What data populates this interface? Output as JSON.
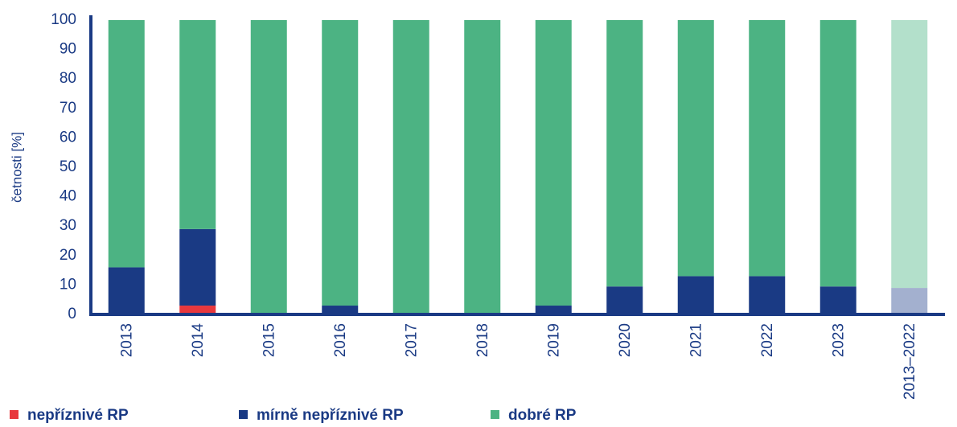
{
  "chart_data": {
    "type": "stacked_bar",
    "y_label": "četnosti [%]",
    "categories": [
      "2013",
      "2014",
      "2015",
      "2016",
      "2017",
      "2018",
      "2019",
      "2020",
      "2021",
      "2022",
      "2023",
      "2013–2022"
    ],
    "series": [
      {
        "name": "nepříznivé RP",
        "color": "#e8383d",
        "colors": [
          "#e8383d",
          "#e8383d",
          "#e8383d",
          "#e8383d",
          "#e8383d",
          "#e8383d",
          "#e8383d",
          "#e8383d",
          "#e8383d",
          "#e8383d",
          "#e8383d",
          "#f2a0a3"
        ],
        "values": [
          0,
          3,
          0,
          0,
          0,
          0,
          0,
          0,
          0,
          0,
          0,
          0
        ]
      },
      {
        "name": "mírně nepříznivé RP",
        "color": "#1a3a84",
        "colors": [
          "#1a3a84",
          "#1a3a84",
          "#1a3a84",
          "#1a3a84",
          "#1a3a84",
          "#1a3a84",
          "#1a3a84",
          "#1a3a84",
          "#1a3a84",
          "#1a3a84",
          "#1a3a84",
          "#a3b0cf"
        ],
        "values": [
          16,
          26,
          0,
          3,
          0,
          0,
          3,
          9.5,
          13,
          13,
          9.5,
          9
        ]
      },
      {
        "name": "dobré RP",
        "color": "#4cb383",
        "colors": [
          "#4cb383",
          "#4cb383",
          "#4cb383",
          "#4cb383",
          "#4cb383",
          "#4cb383",
          "#4cb383",
          "#4cb383",
          "#4cb383",
          "#4cb383",
          "#4cb383",
          "#b3e0cb"
        ],
        "values": [
          84,
          71,
          100,
          97,
          100,
          100,
          97,
          90.5,
          87,
          87,
          90.5,
          91
        ]
      }
    ],
    "ylim": [
      0,
      100
    ],
    "yticks": [
      0,
      10,
      20,
      30,
      40,
      50,
      60,
      70,
      80,
      90,
      100
    ],
    "grid": false
  }
}
